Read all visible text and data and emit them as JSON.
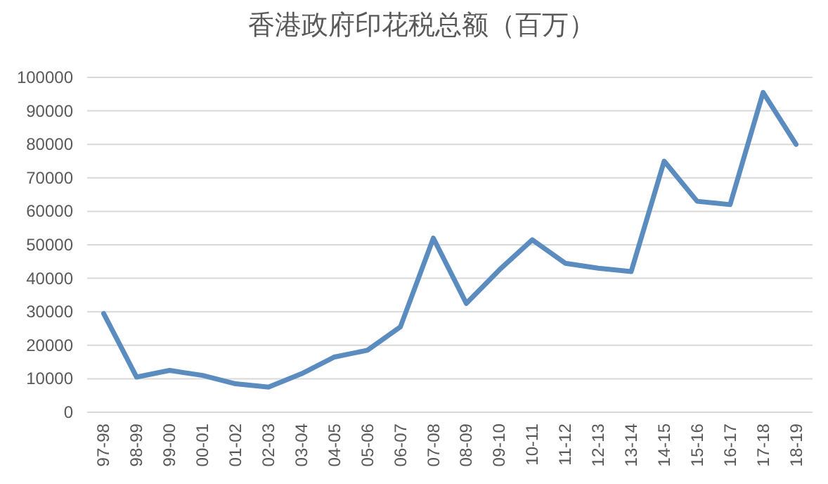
{
  "chart_data": {
    "type": "line",
    "title": "香港政府印花税总额（百万）",
    "categories": [
      "97-98",
      "98-99",
      "99-00",
      "00-01",
      "01-02",
      "02-03",
      "03-04",
      "04-05",
      "05-06",
      "06-07",
      "07-08",
      "08-09",
      "09-10",
      "10-11",
      "11-12",
      "12-13",
      "13-14",
      "14-15",
      "15-16",
      "16-17",
      "17-18",
      "18-19"
    ],
    "series": [
      {
        "color": "#5b8cbf",
        "values": [
          29500,
          10500,
          12500,
          11000,
          8500,
          7500,
          11500,
          16500,
          18500,
          25500,
          52000,
          32500,
          42500,
          51500,
          44500,
          43000,
          42000,
          75000,
          63000,
          62000,
          95500,
          80000
        ]
      }
    ],
    "ylim": [
      0,
      100000
    ],
    "yticks": [
      0,
      10000,
      20000,
      30000,
      40000,
      50000,
      60000,
      70000,
      80000,
      90000,
      100000
    ],
    "grid": "y",
    "marker": "none",
    "line_style": "solid"
  }
}
